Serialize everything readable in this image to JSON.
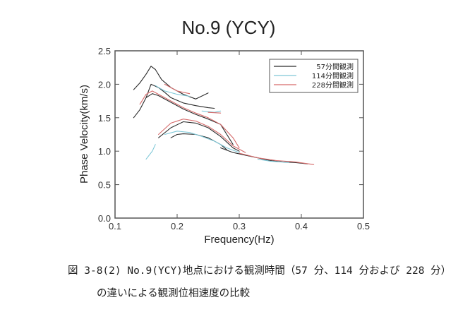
{
  "chart_data": {
    "type": "line",
    "title": "No.9 (YCY)",
    "xlabel": "Frequency(Hz)",
    "ylabel": "Phase Velocity(km/s)",
    "xlim": [
      0.1,
      0.5
    ],
    "ylim": [
      0.0,
      2.5
    ],
    "xticks": [
      "0.1",
      "0.2",
      "0.3",
      "0.4",
      "0.5"
    ],
    "yticks": [
      "0.0",
      "0.5",
      "1.0",
      "1.5",
      "2.0",
      "2.5"
    ],
    "grid": false,
    "legend_position": "top-right",
    "series": [
      {
        "name": "57分間観測",
        "color": "#2b2b2b",
        "segments": [
          [
            [
              0.13,
              1.92
            ],
            [
              0.14,
              2.02
            ],
            [
              0.15,
              2.15
            ],
            [
              0.158,
              2.27
            ],
            [
              0.165,
              2.22
            ],
            [
              0.175,
              2.07
            ],
            [
              0.19,
              1.95
            ],
            [
              0.21,
              1.85
            ],
            [
              0.23,
              1.78
            ],
            [
              0.25,
              1.87
            ]
          ],
          [
            [
              0.13,
              1.5
            ],
            [
              0.14,
              1.62
            ],
            [
              0.15,
              1.8
            ],
            [
              0.158,
              2.0
            ],
            [
              0.17,
              1.95
            ],
            [
              0.18,
              1.88
            ],
            [
              0.19,
              1.8
            ],
            [
              0.21,
              1.72
            ],
            [
              0.23,
              1.68
            ],
            [
              0.25,
              1.65
            ],
            [
              0.26,
              1.64
            ]
          ],
          [
            [
              0.15,
              1.8
            ],
            [
              0.16,
              1.86
            ],
            [
              0.17,
              1.83
            ],
            [
              0.19,
              1.73
            ],
            [
              0.21,
              1.63
            ],
            [
              0.23,
              1.55
            ],
            [
              0.25,
              1.48
            ],
            [
              0.27,
              1.4
            ],
            [
              0.28,
              1.25
            ],
            [
              0.29,
              1.1
            ]
          ],
          [
            [
              0.17,
              1.2
            ],
            [
              0.19,
              1.35
            ],
            [
              0.21,
              1.44
            ],
            [
              0.23,
              1.42
            ],
            [
              0.25,
              1.35
            ],
            [
              0.27,
              1.22
            ],
            [
              0.29,
              1.05
            ],
            [
              0.3,
              1.0
            ]
          ],
          [
            [
              0.19,
              1.2
            ],
            [
              0.2,
              1.25
            ],
            [
              0.21,
              1.26
            ],
            [
              0.23,
              1.25
            ],
            [
              0.25,
              1.2
            ],
            [
              0.27,
              1.1
            ],
            [
              0.28,
              1.02
            ]
          ],
          [
            [
              0.27,
              1.05
            ],
            [
              0.29,
              0.98
            ],
            [
              0.31,
              0.94
            ],
            [
              0.33,
              0.9
            ],
            [
              0.35,
              0.86
            ],
            [
              0.37,
              0.84
            ],
            [
              0.39,
              0.83
            ],
            [
              0.41,
              0.81
            ]
          ]
        ]
      },
      {
        "name": "114分間観測",
        "color": "#7fc8d8",
        "segments": [
          [
            [
              0.15,
              0.88
            ],
            [
              0.16,
              1.0
            ],
            [
              0.165,
              1.1
            ]
          ],
          [
            [
              0.165,
              1.98
            ],
            [
              0.18,
              1.9
            ],
            [
              0.2,
              1.85
            ],
            [
              0.22,
              1.82
            ]
          ],
          [
            [
              0.18,
              1.25
            ],
            [
              0.2,
              1.3
            ],
            [
              0.22,
              1.28
            ],
            [
              0.24,
              1.22
            ],
            [
              0.26,
              1.15
            ],
            [
              0.28,
              1.05
            ],
            [
              0.3,
              0.98
            ]
          ],
          [
            [
              0.24,
              1.6
            ],
            [
              0.26,
              1.58
            ],
            [
              0.27,
              1.6
            ]
          ],
          [
            [
              0.33,
              0.88
            ],
            [
              0.35,
              0.85
            ],
            [
              0.38,
              0.83
            ]
          ]
        ]
      },
      {
        "name": "228分間観測",
        "color": "#d66a6a",
        "segments": [
          [
            [
              0.14,
              1.7
            ],
            [
              0.15,
              1.85
            ],
            [
              0.16,
              1.9
            ],
            [
              0.17,
              1.85
            ],
            [
              0.19,
              1.75
            ],
            [
              0.21,
              1.65
            ],
            [
              0.23,
              1.57
            ],
            [
              0.25,
              1.5
            ],
            [
              0.27,
              1.4
            ],
            [
              0.29,
              1.2
            ],
            [
              0.3,
              1.05
            ]
          ],
          [
            [
              0.17,
              1.25
            ],
            [
              0.19,
              1.42
            ],
            [
              0.21,
              1.48
            ],
            [
              0.23,
              1.45
            ],
            [
              0.25,
              1.37
            ],
            [
              0.27,
              1.25
            ],
            [
              0.29,
              1.08
            ],
            [
              0.31,
              0.98
            ]
          ],
          [
            [
              0.18,
              2.0
            ],
            [
              0.2,
              1.9
            ],
            [
              0.22,
              1.86
            ]
          ],
          [
            [
              0.25,
              1.58
            ],
            [
              0.27,
              1.57
            ]
          ],
          [
            [
              0.3,
              0.97
            ],
            [
              0.33,
              0.9
            ],
            [
              0.36,
              0.86
            ],
            [
              0.39,
              0.84
            ],
            [
              0.42,
              0.8
            ]
          ]
        ]
      }
    ]
  },
  "caption": {
    "line1": "図 3-8(2) No.9(YCY)地点における観測時間（57 分、114 分および 228 分）",
    "line2": "の違いによる観測位相速度の比較"
  }
}
